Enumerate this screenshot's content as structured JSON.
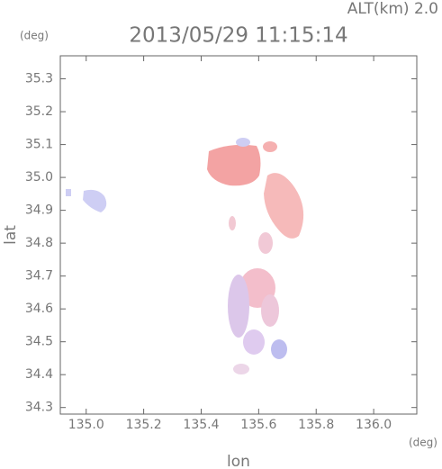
{
  "chart_data": {
    "type": "map",
    "title": "2013/05/29 11:15:14",
    "subtitle": "ALT(km) 2.0",
    "x_label": "lon",
    "y_label": "lat",
    "x_unit": "(deg)",
    "y_unit": "(deg)",
    "xlim": [
      134.91,
      136.15
    ],
    "ylim": [
      34.28,
      35.37
    ],
    "xticks": [
      {
        "value": 135,
        "label": "135.0"
      },
      135.2,
      135.4,
      135.6,
      135.8,
      {
        "value": 136,
        "label": "136.0"
      }
    ],
    "yticks": [
      34.3,
      34.4,
      34.5,
      34.6,
      34.7,
      34.8,
      34.9,
      {
        "value": 35,
        "label": "35.0"
      },
      35.1,
      35.2,
      35.3
    ]
  }
}
